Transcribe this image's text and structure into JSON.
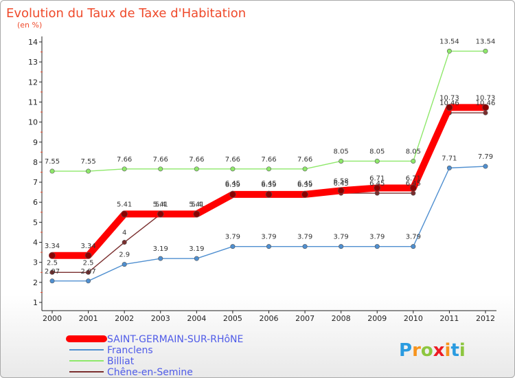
{
  "chart_data": {
    "type": "line",
    "title": "Evolution du Taux de Taxe d'Habitation",
    "ylabel": "(en %)",
    "xlabel": "",
    "categories": [
      "2000",
      "2001",
      "2002",
      "2003",
      "2004",
      "2005",
      "2006",
      "2007",
      "2008",
      "2009",
      "2010",
      "2011",
      "2012"
    ],
    "ylim": [
      1,
      14
    ],
    "yticks": [
      "1",
      "2",
      "3",
      "4",
      "5",
      "6",
      "7",
      "8",
      "9",
      "10",
      "11",
      "12",
      "13",
      "14"
    ],
    "series": [
      {
        "name": "SAINT-GERMAIN-SUR-RHôNE",
        "color": "#ff0000",
        "values": [
          3.34,
          3.34,
          5.41,
          5.41,
          5.41,
          6.39,
          6.39,
          6.39,
          6.58,
          6.71,
          6.71,
          10.73,
          10.73
        ],
        "labels": [
          "3.34",
          "3.34",
          "5.41",
          "5.41",
          "5.41",
          "6.39",
          "6.39",
          "6.39",
          "6.58",
          "6.71",
          "6.71",
          "10.73",
          "10.73"
        ]
      },
      {
        "name": "Franclens",
        "color": "#4f8fd0",
        "values": [
          2.07,
          2.07,
          2.9,
          3.19,
          3.19,
          3.79,
          3.79,
          3.79,
          3.79,
          3.79,
          3.79,
          7.71,
          7.79
        ],
        "labels": [
          "2.07",
          "2.07",
          "2.9",
          "3.19",
          "3.19",
          "3.79",
          "3.79",
          "3.79",
          "3.79",
          "3.79",
          "3.79",
          "7.71",
          "7.79"
        ]
      },
      {
        "name": "Billiat",
        "color": "#8ee86a",
        "values": [
          7.55,
          7.55,
          7.66,
          7.66,
          7.66,
          7.66,
          7.66,
          7.66,
          8.05,
          8.05,
          8.05,
          13.54,
          13.54
        ],
        "labels": [
          "7.55",
          "7.55",
          "7.66",
          "7.66",
          "7.66",
          "7.66",
          "7.66",
          "7.66",
          "8.05",
          "8.05",
          "8.05",
          "13.54",
          "13.54"
        ]
      },
      {
        "name": "Chêne-en-Semine",
        "color": "#7a2e2e",
        "values": [
          2.5,
          2.5,
          4,
          5.4,
          5.4,
          6.45,
          6.45,
          6.45,
          6.45,
          6.45,
          6.45,
          10.46,
          10.46
        ],
        "labels": [
          "2.5",
          "2.5",
          "4",
          "5.4",
          "5.4",
          "6.45",
          "6.45",
          "6.45",
          "6.45",
          "6.45",
          "6.45",
          "10.46",
          "10.46"
        ]
      }
    ]
  },
  "branding": {
    "logo_text": "Proxiti"
  }
}
